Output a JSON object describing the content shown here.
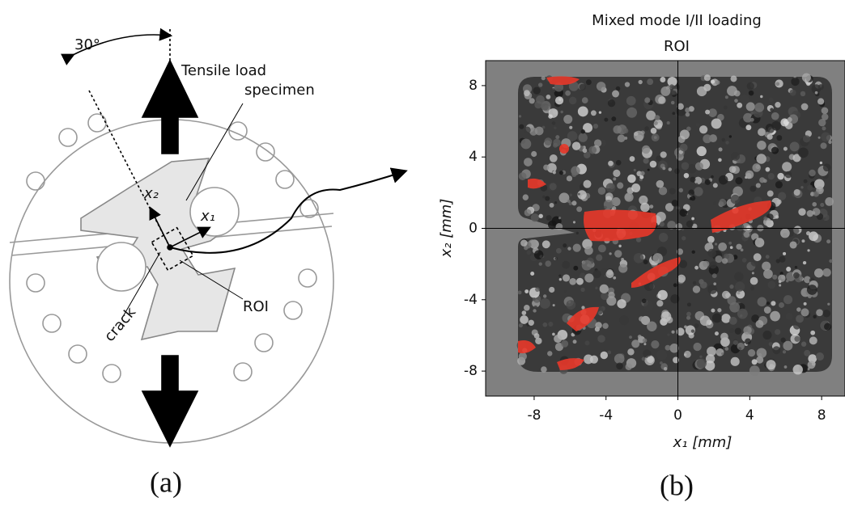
{
  "panel_a": {
    "angle_label": "30°",
    "load_label": "Tensile load",
    "specimen_label": "specimen",
    "x2_label": "x₂",
    "x1_label": "x₁",
    "crack_label": "crack",
    "roi_label": "ROI",
    "caption": "(a)"
  },
  "panel_b": {
    "title": "Mixed mode I/II loading",
    "subtitle": "ROI",
    "xlabel": "x₁ [mm]",
    "ylabel": "x₂ [mm]",
    "xlim": [
      -10.7,
      9.3
    ],
    "ylim": [
      -9.4,
      9.4
    ],
    "xticks": [
      -8,
      -4,
      0,
      4,
      8
    ],
    "yticks": [
      -8,
      -4,
      0,
      4,
      8
    ],
    "caption": "(b)"
  }
}
